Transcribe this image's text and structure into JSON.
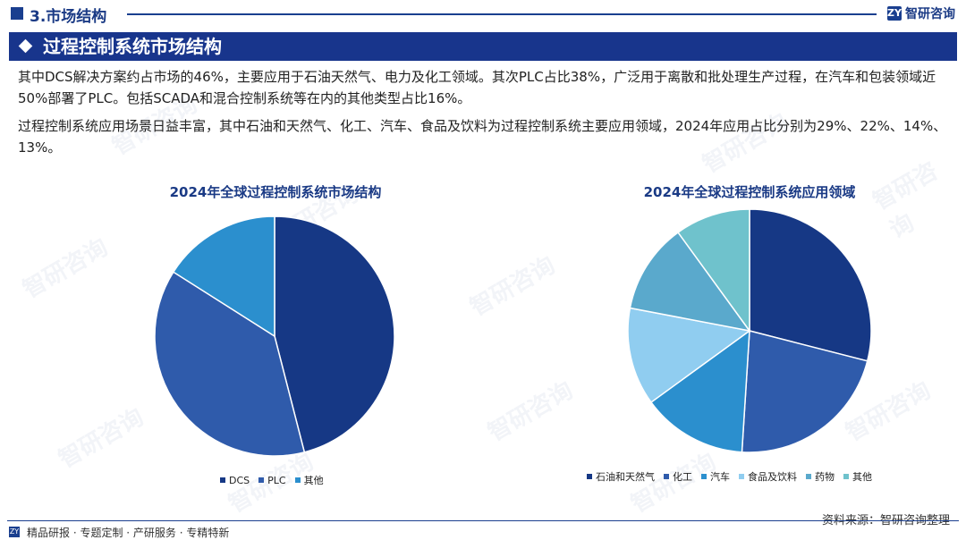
{
  "header": {
    "section_title": "3.市场结构",
    "logo_mark": "ZY",
    "logo_text": "智研咨询"
  },
  "banner": {
    "title": "过程控制系统市场结构"
  },
  "paragraphs": [
    "其中DCS解决方案约占市场的46%，主要应用于石油天然气、电力及化工领域。其次PLC占比38%，广泛用于离散和批处理生产过程，在汽车和包装领域近50%部署了PLC。包括SCADA和混合控制系统等在内的其他类型占比16%。",
    "过程控制系统应用场景日益丰富，其中石油和天然气、化工、汽车、食品及饮料为过程控制系统主要应用领域，2024年应用占比分别为29%、22%、14%、13%。"
  ],
  "watermark_text": "智研咨询",
  "chart_data": [
    {
      "type": "pie",
      "title": "2024年全球过程控制系统市场结构",
      "categories": [
        "DCS",
        "PLC",
        "其他"
      ],
      "values": [
        46,
        38,
        16
      ],
      "colors": [
        "#163885",
        "#2f5bab",
        "#2b8fce"
      ],
      "legend_position": "bottom"
    },
    {
      "type": "pie",
      "title": "2024年全球过程控制系统应用领域",
      "categories": [
        "石油和天然气",
        "化工",
        "汽车",
        "食品及饮料",
        "药物",
        "其他"
      ],
      "values": [
        29,
        22,
        14,
        13,
        12,
        10
      ],
      "colors": [
        "#163885",
        "#2f5bab",
        "#2b8fce",
        "#90cdf0",
        "#5aa9cc",
        "#6fc2cc"
      ],
      "legend_position": "bottom"
    }
  ],
  "footer": {
    "links": "精品研报 · 专题定制 · 产研服务 · 专精特新",
    "source": "资料来源：智研咨询整理"
  }
}
